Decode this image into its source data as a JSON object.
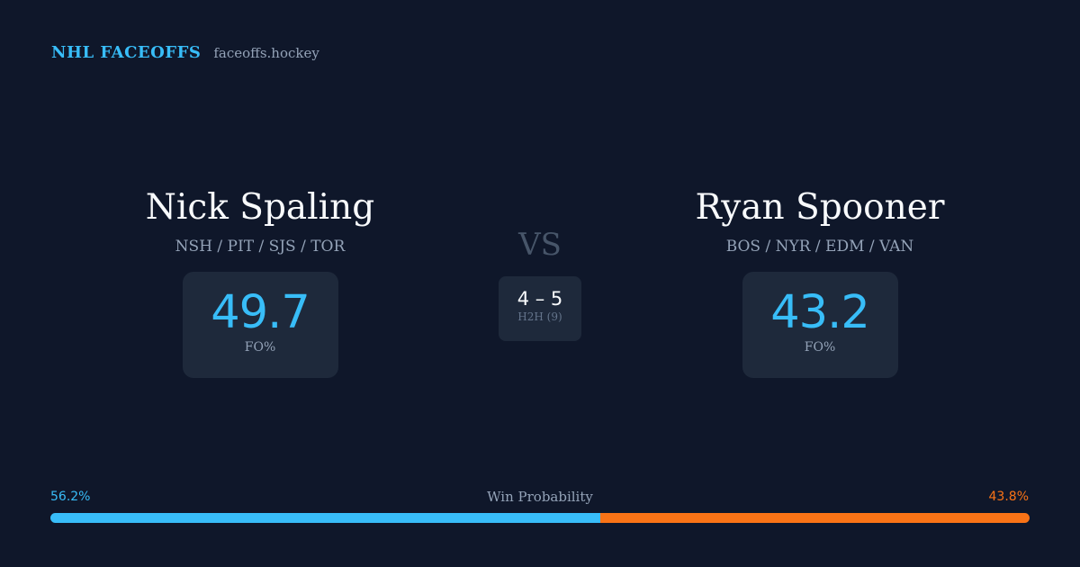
{
  "header": {
    "title": "NHL FACEOFFS",
    "url": "faceoffs.hockey"
  },
  "left_player": {
    "name": "Nick Spaling",
    "teams": "NSH / PIT / SJS / TOR",
    "fo_pct": "49.7",
    "fo_label": "FO%"
  },
  "right_player": {
    "name": "Ryan Spooner",
    "teams": "BOS / NYR / EDM / VAN",
    "fo_pct": "43.2",
    "fo_label": "FO%"
  },
  "versus": {
    "label": "VS",
    "h2h_score": "4 – 5",
    "h2h_label": "H2H (9)"
  },
  "win_probability": {
    "title": "Win Probability",
    "left_label": "56.2%",
    "right_label": "43.8%",
    "left_value": 56.2,
    "right_value": 43.8,
    "left_color": "#38bdf8",
    "right_color": "#f97316"
  }
}
